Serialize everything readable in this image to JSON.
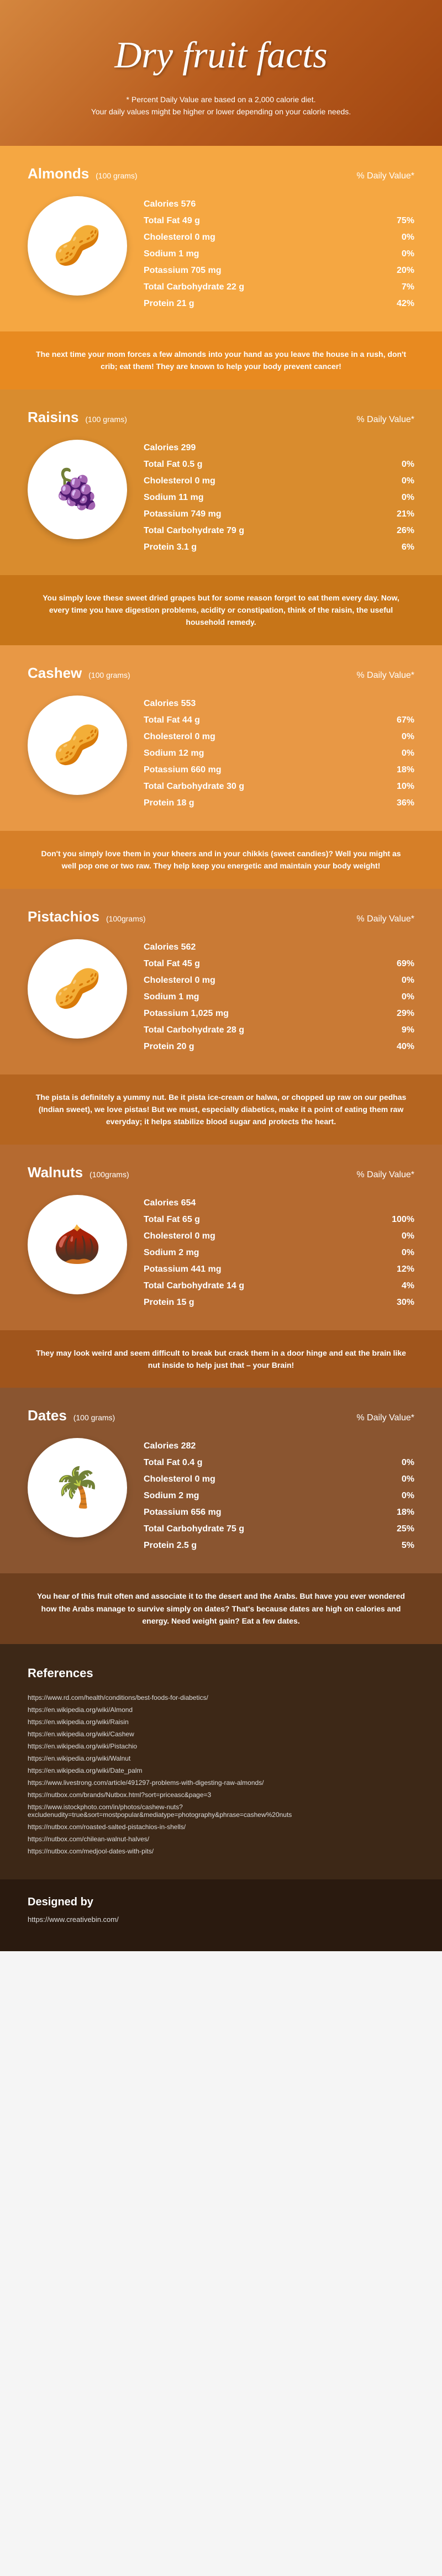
{
  "header": {
    "title": "Dry fruit facts",
    "subtitle": "* Percent Daily Value are based on a 2,000 calorie diet.\nYour daily values might be higher or lower depending on your calorie needs."
  },
  "dv_label": "% Daily Value*",
  "sections": [
    {
      "name": "Almonds",
      "serving": "(100 grams)",
      "bg_color": "#f5a742",
      "divider_color": "#e88a20",
      "emoji": "🥜",
      "rows": [
        {
          "label": "Calories 576",
          "value": ""
        },
        {
          "label": "Total Fat 49 g",
          "value": "75%"
        },
        {
          "label": "Cholesterol 0 mg",
          "value": "0%"
        },
        {
          "label": "Sodium 1 mg",
          "value": "0%"
        },
        {
          "label": "Potassium 705 mg",
          "value": "20%"
        },
        {
          "label": "Total Carbohydrate 22 g",
          "value": "7%"
        },
        {
          "label": "Protein 21 g",
          "value": "42%"
        }
      ],
      "divider_text": "The next time your mom forces a few almonds into your hand as you leave the house in a rush, don't crib; eat them! They are known to help your body prevent cancer!"
    },
    {
      "name": "Raisins",
      "serving": "(100 grams)",
      "bg_color": "#d98c2e",
      "divider_color": "#c77518",
      "emoji": "🍇",
      "rows": [
        {
          "label": "Calories 299",
          "value": ""
        },
        {
          "label": "Total Fat 0.5 g",
          "value": "0%"
        },
        {
          "label": "Cholesterol 0 mg",
          "value": "0%"
        },
        {
          "label": "Sodium 11 mg",
          "value": "0%"
        },
        {
          "label": "Potassium 749 mg",
          "value": "21%"
        },
        {
          "label": "Total Carbohydrate 79 g",
          "value": "26%"
        },
        {
          "label": "Protein 3.1 g",
          "value": "6%"
        }
      ],
      "divider_text": "You simply love these sweet dried grapes but for some reason forget to eat them every day. Now, every time you have digestion problems, acidity or constipation, think of the raisin, the useful household remedy."
    },
    {
      "name": "Cashew",
      "serving": "(100 grams)",
      "bg_color": "#e89845",
      "divider_color": "#d67f28",
      "emoji": "🥜",
      "rows": [
        {
          "label": "Calories 553",
          "value": ""
        },
        {
          "label": "Total Fat 44 g",
          "value": "67%"
        },
        {
          "label": "Cholesterol 0 mg",
          "value": "0%"
        },
        {
          "label": "Sodium 12 mg",
          "value": "0%"
        },
        {
          "label": "Potassium 660 mg",
          "value": "18%"
        },
        {
          "label": "Total Carbohydrate 30 g",
          "value": "10%"
        },
        {
          "label": "Protein 18 g",
          "value": "36%"
        }
      ],
      "divider_text": "Don't you simply love them in your kheers and in your chikkis (sweet candies)? Well you might as well pop one or two raw. They help keep you energetic and maintain your body weight!"
    },
    {
      "name": "Pistachios",
      "serving": "(100grams)",
      "bg_color": "#c97a35",
      "divider_color": "#b56520",
      "emoji": "🥜",
      "rows": [
        {
          "label": "Calories 562",
          "value": ""
        },
        {
          "label": "Total Fat 45 g",
          "value": "69%"
        },
        {
          "label": "Cholesterol 0 mg",
          "value": "0%"
        },
        {
          "label": "Sodium 1 mg",
          "value": "0%"
        },
        {
          "label": "Potassium 1,025 mg",
          "value": "29%"
        },
        {
          "label": "Total Carbohydrate 28 g",
          "value": "9%"
        },
        {
          "label": "Protein 20 g",
          "value": "40%"
        }
      ],
      "divider_text": "The pista is definitely a yummy nut. Be it pista ice-cream or halwa, or chopped up raw on our pedhas (Indian sweet), we love pistas! But we must, especially diabetics, make it a point of eating them raw everyday; it helps stabilize blood sugar and protects the heart."
    },
    {
      "name": "Walnuts",
      "serving": "(100grams)",
      "bg_color": "#b56a30",
      "divider_color": "#a0551c",
      "emoji": "🌰",
      "rows": [
        {
          "label": "Calories 654",
          "value": ""
        },
        {
          "label": "Total Fat 65 g",
          "value": "100%"
        },
        {
          "label": "Cholesterol 0 mg",
          "value": "0%"
        },
        {
          "label": "Sodium 2 mg",
          "value": "0%"
        },
        {
          "label": "Potassium 441 mg",
          "value": "12%"
        },
        {
          "label": "Total Carbohydrate 14 g",
          "value": "4%"
        },
        {
          "label": "Protein 15 g",
          "value": "30%"
        }
      ],
      "divider_text": "They may look weird and seem difficult to break but crack them in a door hinge and eat the brain like nut inside to help just that – your Brain!"
    },
    {
      "name": "Dates",
      "serving": "(100 grams)",
      "bg_color": "#8a5530",
      "divider_color": "#6d3f1e",
      "emoji": "🌴",
      "rows": [
        {
          "label": "Calories 282",
          "value": ""
        },
        {
          "label": "Total Fat 0.4 g",
          "value": "0%"
        },
        {
          "label": "Cholesterol 0 mg",
          "value": "0%"
        },
        {
          "label": "Sodium 2 mg",
          "value": "0%"
        },
        {
          "label": "Potassium 656 mg",
          "value": "18%"
        },
        {
          "label": "Total Carbohydrate 75 g",
          "value": "25%"
        },
        {
          "label": "Protein 2.5 g",
          "value": "5%"
        }
      ],
      "divider_text": "You hear of this fruit often and associate it to the desert and the Arabs. But have you ever wondered how the Arabs manage to survive simply on dates? That's because dates are high on calories and energy. Need weight gain? Eat a few dates."
    }
  ],
  "references": {
    "title": "References",
    "links": [
      "https://www.rd.com/health/conditions/best-foods-for-diabetics/",
      "https://en.wikipedia.org/wiki/Almond",
      "https://en.wikipedia.org/wiki/Raisin",
      "https://en.wikipedia.org/wiki/Cashew",
      "https://en.wikipedia.org/wiki/Pistachio",
      "https://en.wikipedia.org/wiki/Walnut",
      "https://en.wikipedia.org/wiki/Date_palm",
      "https://www.livestrong.com/article/491297-problems-with-digesting-raw-almonds/",
      "https://nutbox.com/brands/Nutbox.html?sort=priceasc&page=3",
      "https://www.istockphoto.com/in/photos/cashew-nuts?excludenudity=true&sort=mostpopular&mediatype=photography&phrase=cashew%20nuts",
      "https://nutbox.com/roasted-salted-pistachios-in-shells/",
      "https://nutbox.com/chilean-walnut-halves/",
      "https://nutbox.com/medjool-dates-with-pits/"
    ]
  },
  "designed": {
    "title": "Designed by",
    "link": "https://www.creativebin.com/"
  }
}
